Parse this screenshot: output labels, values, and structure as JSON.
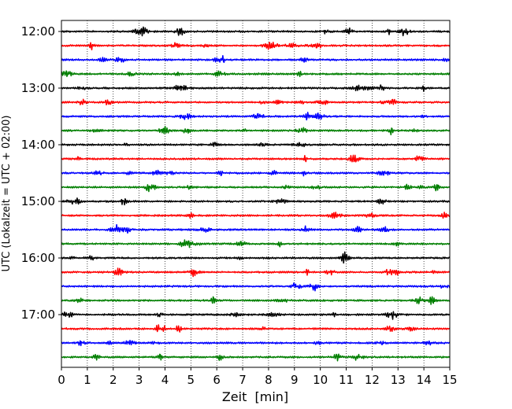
{
  "chart_data": {
    "type": "line",
    "title": "",
    "xlabel": "Zeit  [min]",
    "ylabel": "UTC (Lokalzeit = UTC + 02:00)",
    "xlim": [
      0,
      15
    ],
    "x_ticks": [
      "0",
      "1",
      "2",
      "3",
      "4",
      "5",
      "6",
      "7",
      "8",
      "9",
      "10",
      "11",
      "12",
      "13",
      "14",
      "15"
    ],
    "y_ticks": [
      "12:00",
      "13:00",
      "14:00",
      "15:00",
      "16:00",
      "17:00"
    ],
    "trace_start_times": [
      "12:00",
      "12:15",
      "12:30",
      "12:45",
      "13:00",
      "13:15",
      "13:30",
      "13:45",
      "14:00",
      "14:15",
      "14:30",
      "14:45",
      "15:00",
      "15:15",
      "15:30",
      "15:45",
      "16:00",
      "16:15",
      "16:30",
      "16:45",
      "17:00",
      "17:15",
      "17:30",
      "17:45"
    ],
    "trace_colors": [
      "#000000",
      "#ff0000",
      "#0000ff",
      "#007f00"
    ],
    "grid": {
      "x": "dotted",
      "y": false
    },
    "legend": "none"
  }
}
